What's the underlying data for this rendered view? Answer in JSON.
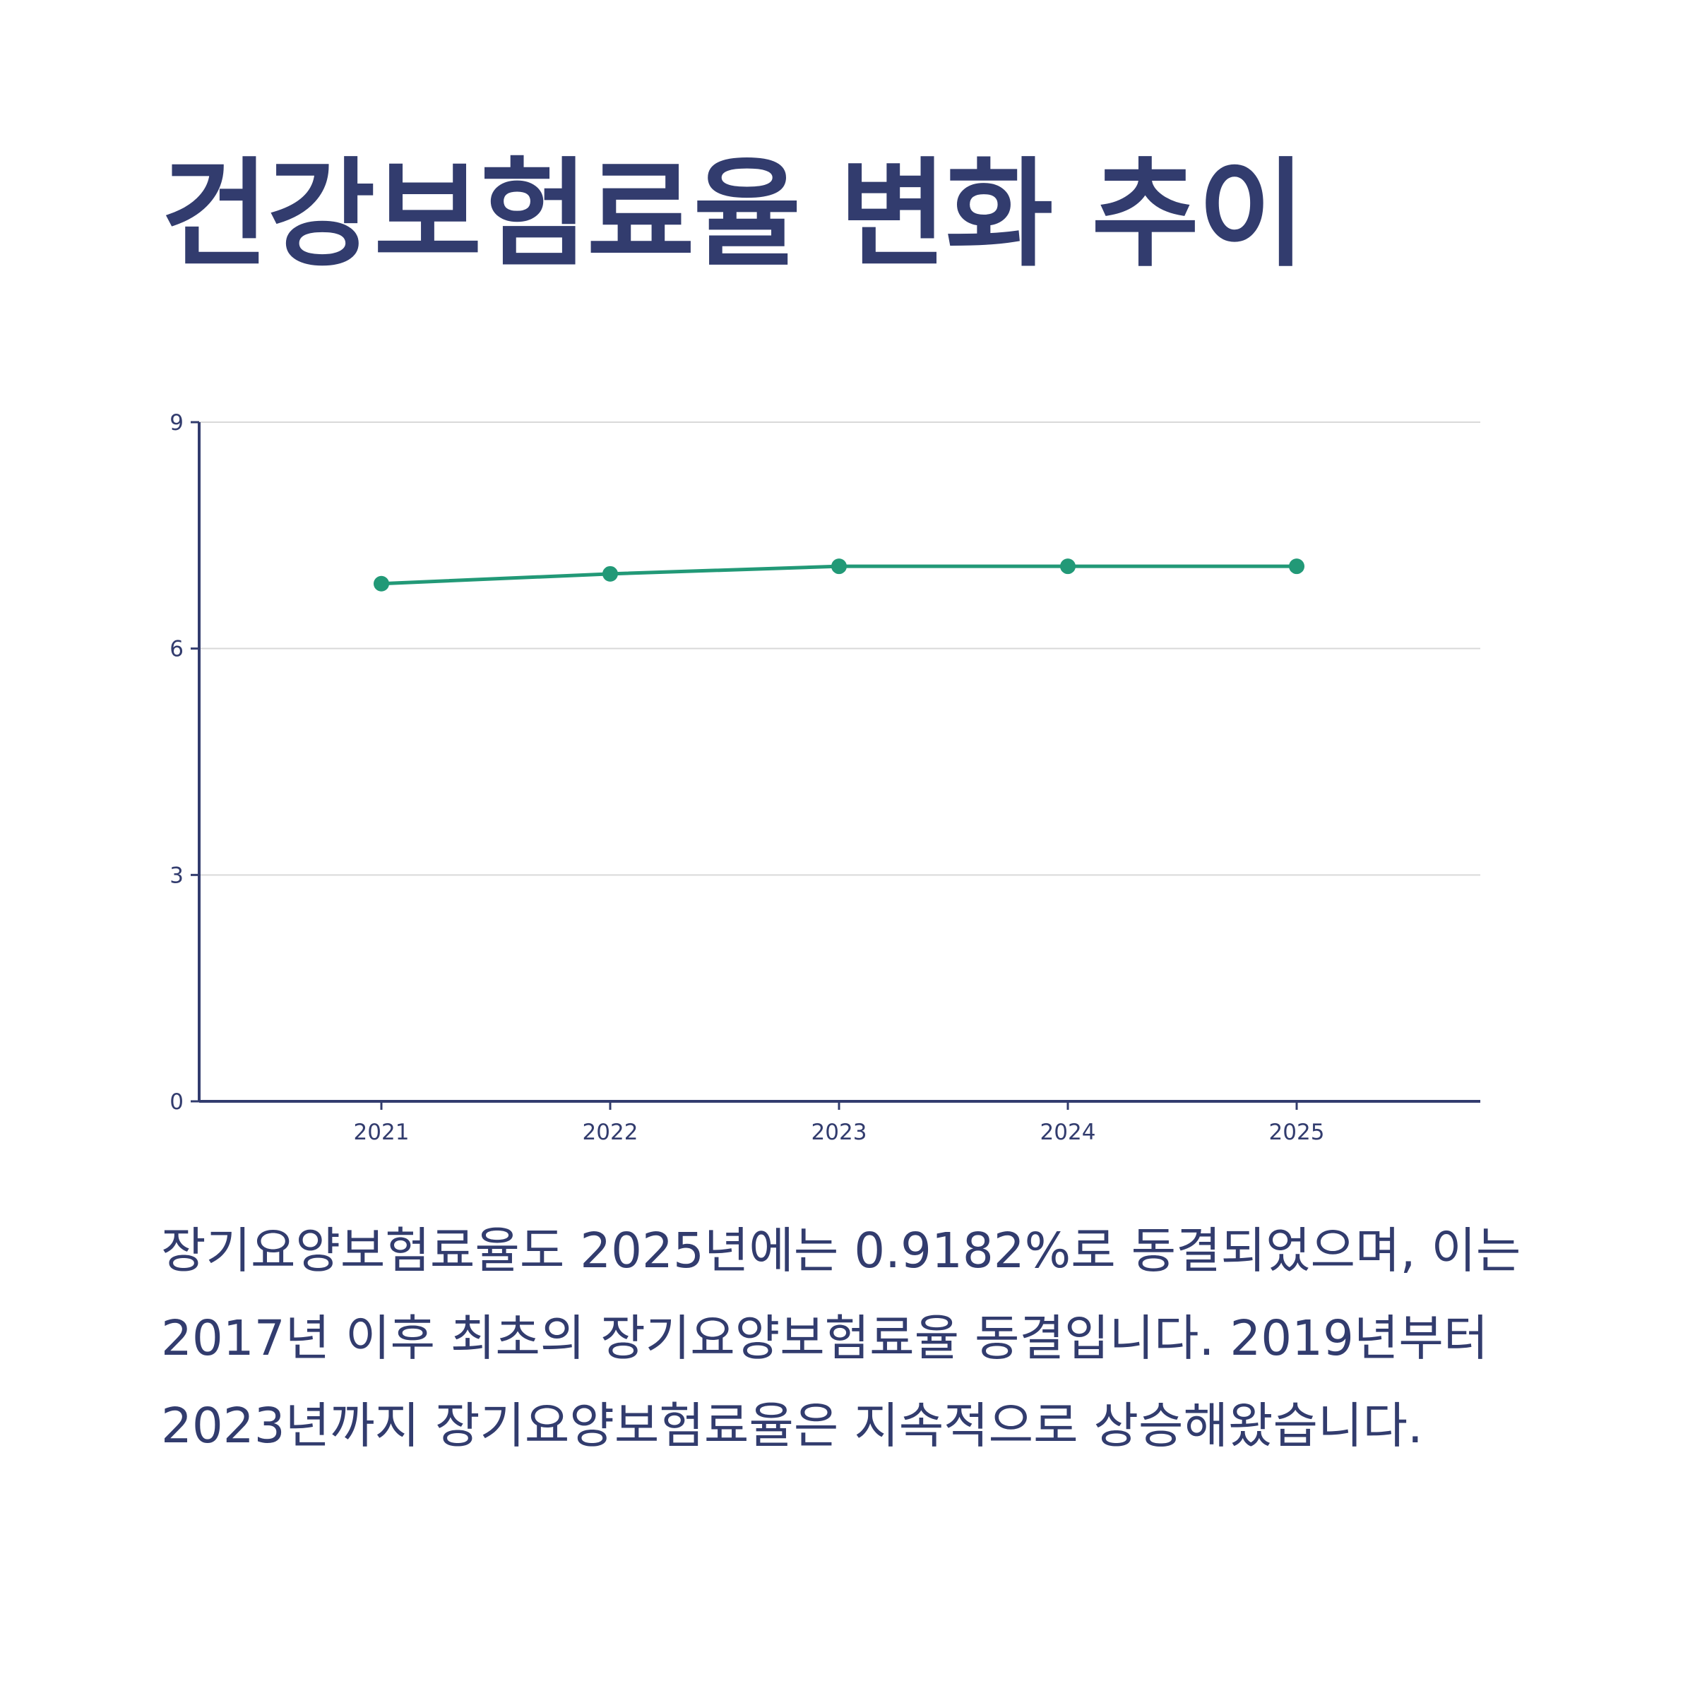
{
  "title": "건강보험료율 변화 추이",
  "description": "장기요양보험료율도 2025년에는 0.9182%로 동결되었으며, 이는 2017년 이후 최초의 장기요양보험료율 동결입니다. 2019년부터 2023년까지 장기요양보험료율은 지속적으로 상승해왔습니다.",
  "colors": {
    "text": "#323c6e",
    "axis": "#323c6e",
    "grid": "#d9d9d9",
    "series": "#229977"
  },
  "chart_data": {
    "type": "line",
    "title": "",
    "xlabel": "",
    "ylabel": "",
    "x": [
      "2021",
      "2022",
      "2023",
      "2024",
      "2025"
    ],
    "series": [
      {
        "values": [
          6.86,
          6.99,
          7.09,
          7.09,
          7.09
        ]
      }
    ],
    "ylim": [
      0,
      9
    ],
    "yticks": [
      0,
      3,
      6,
      9
    ],
    "grid": true,
    "legend": "none"
  }
}
